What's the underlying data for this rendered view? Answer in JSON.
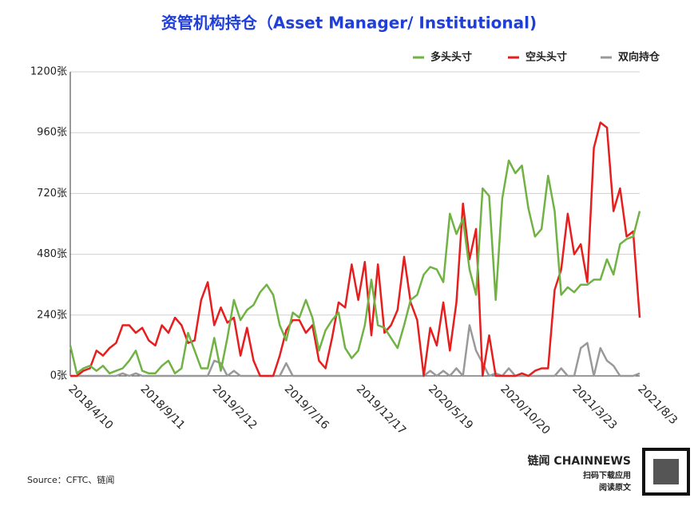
{
  "chart_data": {
    "type": "line",
    "title": "资管机构持仓（Asset Manager/ Institutional)",
    "source": "Source：CFTC、链闻",
    "brand": {
      "name": "链闻 CHAINNEWS",
      "line1": "扫码下载应用",
      "line2": "阅读原文"
    },
    "categories": [
      "2018/4/10",
      null,
      null,
      null,
      null,
      null,
      null,
      null,
      null,
      null,
      null,
      "2018/9/11",
      null,
      null,
      null,
      null,
      null,
      null,
      null,
      null,
      null,
      null,
      "2019/2/12",
      null,
      null,
      null,
      null,
      null,
      null,
      null,
      null,
      null,
      null,
      "2019/7/16",
      null,
      null,
      null,
      null,
      null,
      null,
      null,
      null,
      null,
      null,
      "2019/12/17",
      null,
      null,
      null,
      null,
      null,
      null,
      null,
      null,
      null,
      null,
      "2020/5/19",
      null,
      null,
      null,
      null,
      null,
      null,
      null,
      null,
      null,
      null,
      "2020/10/20",
      null,
      null,
      null,
      null,
      null,
      null,
      null,
      null,
      null,
      null,
      "2021/3/23",
      null,
      null,
      null,
      null,
      null,
      null,
      null,
      null,
      null,
      "2021/8/3"
    ],
    "series": [
      {
        "name": "多头头寸",
        "color": "#70b243",
        "values": [
          120,
          10,
          30,
          40,
          20,
          40,
          10,
          20,
          30,
          60,
          100,
          20,
          10,
          10,
          40,
          60,
          10,
          30,
          170,
          100,
          30,
          30,
          150,
          20,
          150,
          300,
          220,
          260,
          280,
          330,
          360,
          320,
          200,
          140,
          250,
          230,
          300,
          230,
          100,
          180,
          220,
          250,
          110,
          70,
          100,
          200,
          380,
          200,
          190,
          150,
          110,
          200,
          300,
          320,
          400,
          430,
          420,
          370,
          640,
          560,
          620,
          420,
          320,
          740,
          710,
          300,
          700,
          850,
          800,
          830,
          660,
          550,
          580,
          790,
          650,
          320,
          350,
          330,
          360,
          360,
          380,
          380,
          460,
          400,
          520,
          540,
          550,
          650
        ]
      },
      {
        "name": "空头头寸",
        "color": "#e61e1e",
        "values": [
          0,
          0,
          20,
          30,
          100,
          80,
          110,
          130,
          200,
          200,
          170,
          190,
          140,
          120,
          200,
          170,
          230,
          200,
          130,
          140,
          300,
          370,
          200,
          270,
          210,
          230,
          80,
          190,
          60,
          0,
          0,
          0,
          80,
          180,
          220,
          220,
          170,
          200,
          60,
          30,
          150,
          290,
          270,
          440,
          300,
          450,
          160,
          440,
          170,
          200,
          260,
          470,
          290,
          220,
          0,
          190,
          120,
          290,
          100,
          290,
          680,
          460,
          580,
          0,
          160,
          0,
          0,
          0,
          0,
          10,
          0,
          20,
          30,
          30,
          340,
          420,
          640,
          480,
          520,
          370,
          900,
          1000,
          980,
          650,
          740,
          550,
          570,
          230
        ]
      },
      {
        "name": "双向持仓",
        "color": "#999999",
        "values": [
          0,
          0,
          0,
          0,
          0,
          0,
          0,
          0,
          10,
          0,
          10,
          0,
          0,
          0,
          0,
          0,
          0,
          0,
          0,
          0,
          0,
          0,
          60,
          50,
          0,
          20,
          0,
          0,
          0,
          0,
          0,
          0,
          0,
          50,
          0,
          0,
          0,
          0,
          0,
          0,
          0,
          0,
          0,
          0,
          0,
          0,
          0,
          0,
          0,
          0,
          0,
          0,
          0,
          0,
          0,
          20,
          0,
          20,
          0,
          30,
          0,
          200,
          100,
          50,
          0,
          10,
          0,
          30,
          0,
          0,
          0,
          0,
          0,
          0,
          0,
          30,
          0,
          0,
          110,
          130,
          0,
          110,
          60,
          40,
          0,
          0,
          0,
          10
        ]
      }
    ],
    "ylim": [
      0,
      1200
    ],
    "yticks": [
      {
        "value": 0,
        "label": "0张"
      },
      {
        "value": 240,
        "label": "240张"
      },
      {
        "value": 480,
        "label": "480张"
      },
      {
        "value": 720,
        "label": "720张"
      },
      {
        "value": 960,
        "label": "960张"
      },
      {
        "value": 1200,
        "label": "1200张"
      }
    ],
    "grid": true,
    "legend": "top-right"
  }
}
